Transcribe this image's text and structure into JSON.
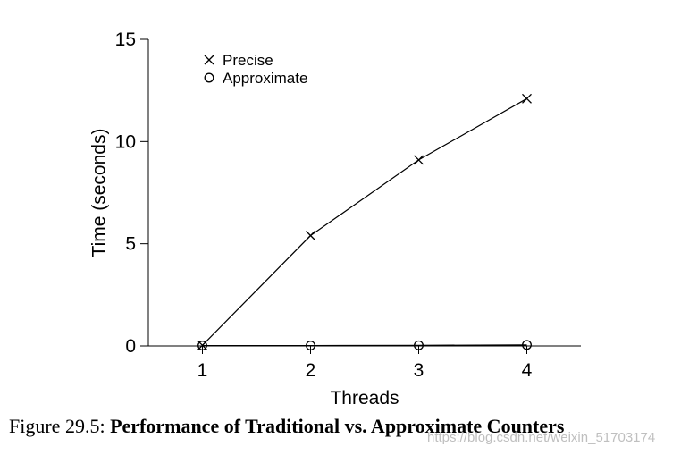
{
  "chart_data": {
    "type": "line",
    "title": "",
    "xlabel": "Threads",
    "ylabel": "Time (seconds)",
    "x": [
      1,
      2,
      3,
      4
    ],
    "x_ticks": [
      1,
      2,
      3,
      4
    ],
    "y_ticks": [
      0,
      5,
      10,
      15
    ],
    "ylim": [
      0,
      15
    ],
    "xlim": [
      0.5,
      4.5
    ],
    "grid": false,
    "legend_position": "top-left",
    "series": [
      {
        "name": "Precise",
        "marker": "cross",
        "values": [
          0.03,
          5.4,
          9.1,
          12.1
        ]
      },
      {
        "name": "Approximate",
        "marker": "circle",
        "values": [
          0.02,
          0.02,
          0.03,
          0.05
        ]
      }
    ]
  },
  "caption": {
    "prefix": "Figure 29.5: ",
    "bold_text": "Performance of Traditional vs. Approximate Counters"
  },
  "watermark": "https://blog.csdn.net/weixin_51703174",
  "colors": {
    "line": "#000000",
    "background": "#ffffff"
  }
}
